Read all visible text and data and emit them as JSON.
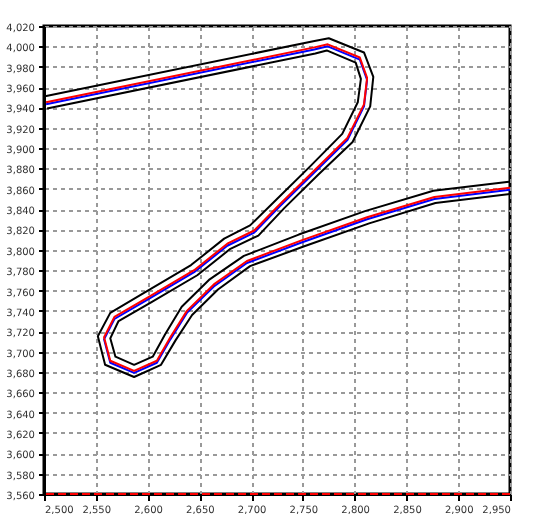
{
  "chart_data": {
    "type": "line",
    "xlim": [
      2500,
      2950
    ],
    "xticks": [
      {
        "value": 2500,
        "label": "2,500"
      },
      {
        "value": 2550,
        "label": "2,550"
      },
      {
        "value": 2600,
        "label": "2,600"
      },
      {
        "value": 2650,
        "label": "2,650"
      },
      {
        "value": 2700,
        "label": "2,700"
      },
      {
        "value": 2750,
        "label": "2,750"
      },
      {
        "value": 2800,
        "label": "2,800"
      },
      {
        "value": 2850,
        "label": "2,850"
      },
      {
        "value": 2900,
        "label": "2,900"
      },
      {
        "value": 2950,
        "label": "2,950"
      }
    ],
    "ylim": [
      3560,
      4020
    ],
    "yticks": [
      {
        "value": 3560,
        "label": "3,560"
      },
      {
        "value": 3580,
        "label": "3,580"
      },
      {
        "value": 3600,
        "label": "3,600"
      },
      {
        "value": 3620,
        "label": "3,620"
      },
      {
        "value": 3640,
        "label": "3,640"
      },
      {
        "value": 3660,
        "label": "3,660"
      },
      {
        "value": 3680,
        "label": "3,680"
      },
      {
        "value": 3700,
        "label": "3,700"
      },
      {
        "value": 3720,
        "label": "3,720"
      },
      {
        "value": 3740,
        "label": "3,740"
      },
      {
        "value": 3760,
        "label": "3,760"
      },
      {
        "value": 3780,
        "label": "3,780"
      },
      {
        "value": 3800,
        "label": "3,800"
      },
      {
        "value": 3820,
        "label": "3,820"
      },
      {
        "value": 3840,
        "label": "3,840"
      },
      {
        "value": 3860,
        "label": "3,860"
      },
      {
        "value": 3880,
        "label": "3,880"
      },
      {
        "value": 3900,
        "label": "3,900"
      },
      {
        "value": 3920,
        "label": "3,920"
      },
      {
        "value": 3940,
        "label": "3,940"
      },
      {
        "value": 3960,
        "label": "3,960"
      },
      {
        "value": 3980,
        "label": "3,980"
      },
      {
        "value": 4000,
        "label": "4,000"
      },
      {
        "value": 4020,
        "label": "4,020"
      }
    ],
    "grid": true,
    "marker": "none",
    "line_style": "solid",
    "series": [
      {
        "color": "#000000",
        "x": [
          2501,
          2760,
          2775,
          2809,
          2818,
          2815,
          2798,
          2765,
          2732,
          2707,
          2680,
          2648,
          2603,
          2572,
          2564,
          2569,
          2587,
          2605,
          2617,
          2633,
          2660,
          2693,
          2746,
          2810,
          2876,
          2949
        ],
        "values": [
          3951,
          4005,
          4008,
          3994,
          3970,
          3941,
          3906,
          3874,
          3841,
          3814,
          3801,
          3775,
          3748,
          3730,
          3713,
          3695,
          3687,
          3695,
          3717,
          3744,
          3771,
          3794,
          3815,
          3838,
          3858,
          3867
        ]
      },
      {
        "color": "#000000",
        "x": [
          2503,
          2762,
          2773,
          2801,
          2806,
          2803,
          2788,
          2757,
          2724,
          2699,
          2674,
          2642,
          2597,
          2564,
          2552,
          2559,
          2587,
          2613,
          2627,
          2643,
          2668,
          2699,
          2750,
          2814,
          2878,
          2950
        ],
        "values": [
          3939,
          3993,
          3996,
          3984,
          3968,
          3945,
          3914,
          3882,
          3849,
          3824,
          3811,
          3785,
          3758,
          3738,
          3715,
          3687,
          3675,
          3687,
          3711,
          3736,
          3761,
          3784,
          3803,
          3826,
          3846,
          3855
        ]
      },
      {
        "color": "#0000ff",
        "x": [
          2502,
          2761,
          2774,
          2805,
          2812,
          2809,
          2793,
          2761,
          2728,
          2703,
          2677,
          2645,
          2600,
          2568,
          2558,
          2564,
          2587,
          2609,
          2622,
          2638,
          2664,
          2696,
          2748,
          2812,
          2877,
          2950
        ],
        "values": [
          3943,
          3997,
          4000,
          3987,
          3967,
          3941,
          3908,
          3876,
          3843,
          3817,
          3804,
          3778,
          3751,
          3732,
          3712,
          3689,
          3679,
          3689,
          3712,
          3738,
          3764,
          3787,
          3807,
          3830,
          3850,
          3859
        ]
      },
      {
        "color": "#ff0000",
        "x": [
          2502,
          2761,
          2774,
          2805,
          2812,
          2809,
          2793,
          2761,
          2728,
          2703,
          2677,
          2645,
          2600,
          2568,
          2558,
          2564,
          2587,
          2609,
          2622,
          2638,
          2664,
          2696,
          2748,
          2812,
          2877,
          2950
        ],
        "values": [
          3945,
          3999,
          4002,
          3989,
          3969,
          3943,
          3910,
          3878,
          3845,
          3819,
          3806,
          3780,
          3753,
          3734,
          3714,
          3691,
          3681,
          3691,
          3714,
          3740,
          3766,
          3789,
          3809,
          3832,
          3852,
          3861
        ]
      }
    ],
    "ref_lines": [
      {
        "axis": "y",
        "value": 3560,
        "color": "#ff0000",
        "line_style": "dashed"
      }
    ]
  }
}
